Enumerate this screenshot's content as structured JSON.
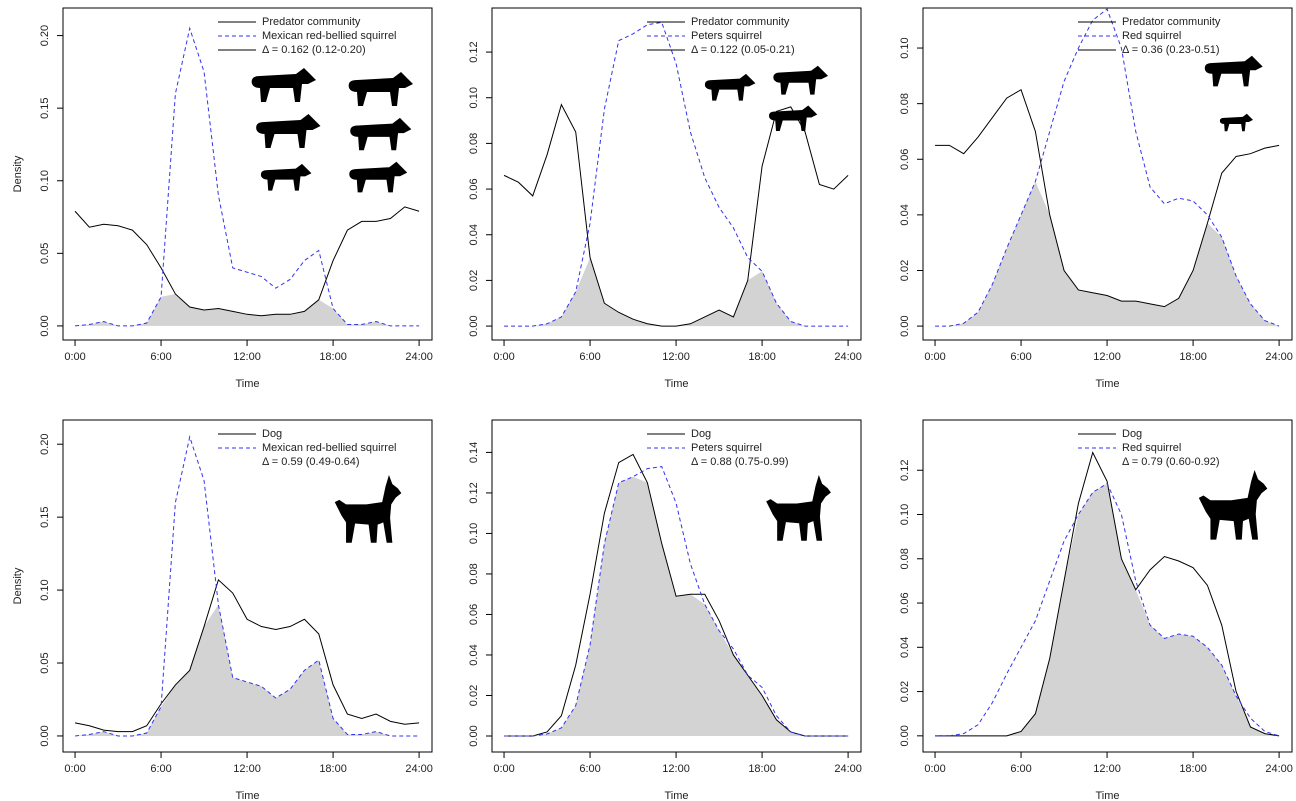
{
  "chart_data": [
    {
      "type": "line",
      "xlabel": "Time",
      "ylabel": "Density",
      "annotation": "Δ = 0.162 (0.12-0.20)",
      "overlap_color": "#d3d3d3",
      "x": [
        0,
        1,
        2,
        3,
        4,
        5,
        6,
        7,
        8,
        9,
        10,
        11,
        12,
        13,
        14,
        15,
        16,
        17,
        18,
        19,
        20,
        21,
        22,
        23,
        24
      ],
      "xlim": [
        -0.84,
        24.9
      ],
      "xticks": [
        {
          "value": 0,
          "label": "0:00"
        },
        {
          "value": 6,
          "label": "6:00"
        },
        {
          "value": 12,
          "label": "12:00"
        },
        {
          "value": 18,
          "label": "18:00"
        },
        {
          "value": 24,
          "label": "24:00"
        }
      ],
      "ylim": [
        -0.0097,
        0.219
      ],
      "yticks": [
        {
          "value": 0,
          "label": "0.00"
        },
        {
          "value": 0.05,
          "label": "0.05"
        },
        {
          "value": 0.1,
          "label": "0.10"
        },
        {
          "value": 0.15,
          "label": "0.15"
        },
        {
          "value": 0.2,
          "label": "0.20"
        }
      ],
      "series": [
        {
          "name": "Predator community",
          "color": "#000000",
          "linestyle": "solid",
          "values": [
            0.079,
            0.068,
            0.07,
            0.069,
            0.066,
            0.056,
            0.04,
            0.022,
            0.013,
            0.011,
            0.012,
            0.01,
            0.008,
            0.007,
            0.008,
            0.008,
            0.01,
            0.018,
            0.045,
            0.066,
            0.072,
            0.072,
            0.074,
            0.082,
            0.079
          ]
        },
        {
          "name": "Mexican red-bellied squirrel",
          "color": "#3333ee",
          "linestyle": "dashed",
          "values": [
            0,
            0.001,
            0.003,
            0,
            0,
            0.002,
            0.02,
            0.16,
            0.205,
            0.175,
            0.09,
            0.04,
            0.037,
            0.034,
            0.026,
            0.032,
            0.045,
            0.052,
            0.012,
            0.001,
            0.001,
            0.003,
            0,
            0,
            0
          ]
        }
      ]
    },
    {
      "type": "line",
      "xlabel": "Time",
      "annotation": "Δ = 0.122 (0.05-0.21)",
      "overlap_color": "#d3d3d3",
      "x": [
        0,
        1,
        2,
        3,
        4,
        5,
        6,
        7,
        8,
        9,
        10,
        11,
        12,
        13,
        14,
        15,
        16,
        17,
        18,
        19,
        20,
        21,
        22,
        23,
        24
      ],
      "xlim": [
        -0.84,
        24.9
      ],
      "xticks": [
        {
          "value": 0,
          "label": "0:00"
        },
        {
          "value": 6,
          "label": "6:00"
        },
        {
          "value": 12,
          "label": "12:00"
        },
        {
          "value": 18,
          "label": "18:00"
        },
        {
          "value": 24,
          "label": "24:00"
        }
      ],
      "ylim": [
        -0.0061,
        0.1393
      ],
      "yticks": [
        {
          "value": 0,
          "label": "0.00"
        },
        {
          "value": 0.02,
          "label": "0.02"
        },
        {
          "value": 0.04,
          "label": "0.04"
        },
        {
          "value": 0.06,
          "label": "0.06"
        },
        {
          "value": 0.08,
          "label": "0.08"
        },
        {
          "value": 0.1,
          "label": "0.10"
        },
        {
          "value": 0.12,
          "label": "0.12"
        }
      ],
      "series": [
        {
          "name": "Predator community",
          "color": "#000000",
          "linestyle": "solid",
          "values": [
            0.066,
            0.063,
            0.057,
            0.075,
            0.097,
            0.085,
            0.03,
            0.01,
            0.006,
            0.003,
            0.001,
            0,
            0,
            0.001,
            0.004,
            0.007,
            0.004,
            0.02,
            0.07,
            0.094,
            0.096,
            0.085,
            0.062,
            0.06,
            0.066
          ]
        },
        {
          "name": "Peters squirrel",
          "color": "#3333ee",
          "linestyle": "dashed",
          "values": [
            0,
            0,
            0,
            0.001,
            0.004,
            0.015,
            0.045,
            0.095,
            0.125,
            0.128,
            0.132,
            0.133,
            0.115,
            0.085,
            0.065,
            0.052,
            0.043,
            0.03,
            0.024,
            0.01,
            0.002,
            0,
            0,
            0,
            0
          ]
        }
      ]
    },
    {
      "type": "line",
      "xlabel": "Time",
      "annotation": "Δ = 0.36 (0.23-0.51)",
      "overlap_color": "#d3d3d3",
      "x": [
        0,
        1,
        2,
        3,
        4,
        5,
        6,
        7,
        8,
        9,
        10,
        11,
        12,
        13,
        14,
        15,
        16,
        17,
        18,
        19,
        20,
        21,
        22,
        23,
        24
      ],
      "xlim": [
        -0.84,
        24.9
      ],
      "xticks": [
        {
          "value": 0,
          "label": "0:00"
        },
        {
          "value": 6,
          "label": "6:00"
        },
        {
          "value": 12,
          "label": "12:00"
        },
        {
          "value": 18,
          "label": "18:00"
        },
        {
          "value": 24,
          "label": "24:00"
        }
      ],
      "ylim": [
        -0.005,
        0.1144
      ],
      "yticks": [
        {
          "value": 0,
          "label": "0.00"
        },
        {
          "value": 0.02,
          "label": "0.02"
        },
        {
          "value": 0.04,
          "label": "0.04"
        },
        {
          "value": 0.06,
          "label": "0.06"
        },
        {
          "value": 0.08,
          "label": "0.08"
        },
        {
          "value": 0.1,
          "label": "0.10"
        }
      ],
      "series": [
        {
          "name": "Predator community",
          "color": "#000000",
          "linestyle": "solid",
          "values": [
            0.065,
            0.065,
            0.062,
            0.068,
            0.075,
            0.082,
            0.085,
            0.07,
            0.04,
            0.02,
            0.013,
            0.012,
            0.011,
            0.009,
            0.009,
            0.008,
            0.007,
            0.01,
            0.02,
            0.037,
            0.055,
            0.061,
            0.062,
            0.064,
            0.065
          ]
        },
        {
          "name": "Red squirrel",
          "color": "#3333ee",
          "linestyle": "dashed",
          "values": [
            0,
            0,
            0.001,
            0.005,
            0.015,
            0.028,
            0.04,
            0.052,
            0.07,
            0.088,
            0.1,
            0.11,
            0.114,
            0.1,
            0.07,
            0.05,
            0.044,
            0.046,
            0.045,
            0.04,
            0.032,
            0.018,
            0.008,
            0.002,
            0
          ]
        }
      ]
    },
    {
      "type": "line",
      "xlabel": "Time",
      "ylabel": "Density",
      "annotation": "Δ = 0.59 (0.49-0.64)",
      "overlap_color": "#d3d3d3",
      "x": [
        0,
        1,
        2,
        3,
        4,
        5,
        6,
        7,
        8,
        9,
        10,
        11,
        12,
        13,
        14,
        15,
        16,
        17,
        18,
        19,
        20,
        21,
        22,
        23,
        24
      ],
      "xlim": [
        -0.84,
        24.9
      ],
      "xticks": [
        {
          "value": 0,
          "label": "0:00"
        },
        {
          "value": 6,
          "label": "6:00"
        },
        {
          "value": 12,
          "label": "12:00"
        },
        {
          "value": 18,
          "label": "18:00"
        },
        {
          "value": 24,
          "label": "24:00"
        }
      ],
      "ylim": [
        -0.011,
        0.2166
      ],
      "yticks": [
        {
          "value": 0,
          "label": "0.00"
        },
        {
          "value": 0.05,
          "label": "0.05"
        },
        {
          "value": 0.1,
          "label": "0.10"
        },
        {
          "value": 0.15,
          "label": "0.15"
        },
        {
          "value": 0.2,
          "label": "0.20"
        }
      ],
      "series": [
        {
          "name": "Dog",
          "color": "#000000",
          "linestyle": "solid",
          "values": [
            0.009,
            0.007,
            0.004,
            0.003,
            0.003,
            0.007,
            0.022,
            0.035,
            0.045,
            0.075,
            0.107,
            0.098,
            0.08,
            0.075,
            0.073,
            0.075,
            0.08,
            0.07,
            0.035,
            0.015,
            0.012,
            0.015,
            0.01,
            0.008,
            0.009
          ]
        },
        {
          "name": "Mexican red-bellied squirrel",
          "color": "#3333ee",
          "linestyle": "dashed",
          "values": [
            0,
            0.001,
            0.003,
            0,
            0,
            0.002,
            0.02,
            0.16,
            0.205,
            0.175,
            0.09,
            0.04,
            0.037,
            0.034,
            0.026,
            0.032,
            0.045,
            0.052,
            0.012,
            0.001,
            0.001,
            0.003,
            0,
            0,
            0
          ]
        }
      ]
    },
    {
      "type": "line",
      "xlabel": "Time",
      "annotation": "Δ = 0.88 (0.75-0.99)",
      "overlap_color": "#d3d3d3",
      "x": [
        0,
        1,
        2,
        3,
        4,
        5,
        6,
        7,
        8,
        9,
        10,
        11,
        12,
        13,
        14,
        15,
        16,
        17,
        18,
        19,
        20,
        21,
        22,
        23,
        24
      ],
      "xlim": [
        -0.84,
        24.9
      ],
      "xticks": [
        {
          "value": 0,
          "label": "0:00"
        },
        {
          "value": 6,
          "label": "6:00"
        },
        {
          "value": 12,
          "label": "12:00"
        },
        {
          "value": 18,
          "label": "18:00"
        },
        {
          "value": 24,
          "label": "24:00"
        }
      ],
      "ylim": [
        -0.0079,
        0.156
      ],
      "yticks": [
        {
          "value": 0,
          "label": "0.00"
        },
        {
          "value": 0.02,
          "label": "0.02"
        },
        {
          "value": 0.04,
          "label": "0.04"
        },
        {
          "value": 0.06,
          "label": "0.06"
        },
        {
          "value": 0.08,
          "label": "0.08"
        },
        {
          "value": 0.1,
          "label": "0.10"
        },
        {
          "value": 0.12,
          "label": "0.12"
        },
        {
          "value": 0.14,
          "label": "0.14"
        }
      ],
      "series": [
        {
          "name": "Dog",
          "color": "#000000",
          "linestyle": "solid",
          "values": [
            0,
            0,
            0,
            0.002,
            0.01,
            0.035,
            0.07,
            0.11,
            0.135,
            0.139,
            0.125,
            0.095,
            0.069,
            0.07,
            0.07,
            0.057,
            0.04,
            0.03,
            0.02,
            0.008,
            0.002,
            0,
            0,
            0,
            0
          ]
        },
        {
          "name": "Peters squirrel",
          "color": "#3333ee",
          "linestyle": "dashed",
          "values": [
            0,
            0,
            0,
            0.001,
            0.004,
            0.015,
            0.045,
            0.095,
            0.125,
            0.128,
            0.132,
            0.133,
            0.115,
            0.085,
            0.065,
            0.052,
            0.043,
            0.03,
            0.024,
            0.01,
            0.002,
            0,
            0,
            0,
            0
          ]
        }
      ]
    },
    {
      "type": "line",
      "xlabel": "Time",
      "annotation": "Δ = 0.79 (0.60-0.92)",
      "overlap_color": "#d3d3d3",
      "x": [
        0,
        1,
        2,
        3,
        4,
        5,
        6,
        7,
        8,
        9,
        10,
        11,
        12,
        13,
        14,
        15,
        16,
        17,
        18,
        19,
        20,
        21,
        22,
        23,
        24
      ],
      "xlim": [
        -0.84,
        24.9
      ],
      "xticks": [
        {
          "value": 0,
          "label": "0:00"
        },
        {
          "value": 6,
          "label": "6:00"
        },
        {
          "value": 12,
          "label": "12:00"
        },
        {
          "value": 18,
          "label": "18:00"
        },
        {
          "value": 24,
          "label": "24:00"
        }
      ],
      "ylim": [
        -0.0073,
        0.1427
      ],
      "yticks": [
        {
          "value": 0,
          "label": "0.00"
        },
        {
          "value": 0.02,
          "label": "0.02"
        },
        {
          "value": 0.04,
          "label": "0.04"
        },
        {
          "value": 0.06,
          "label": "0.06"
        },
        {
          "value": 0.08,
          "label": "0.08"
        },
        {
          "value": 0.1,
          "label": "0.10"
        },
        {
          "value": 0.12,
          "label": "0.12"
        }
      ],
      "series": [
        {
          "name": "Dog",
          "color": "#000000",
          "linestyle": "solid",
          "values": [
            0,
            0,
            0,
            0,
            0,
            0,
            0.002,
            0.01,
            0.035,
            0.07,
            0.105,
            0.128,
            0.115,
            0.08,
            0.066,
            0.075,
            0.081,
            0.079,
            0.076,
            0.068,
            0.05,
            0.02,
            0.004,
            0.001,
            0
          ]
        },
        {
          "name": "Red squirrel",
          "color": "#3333ee",
          "linestyle": "dashed",
          "values": [
            0,
            0,
            0.001,
            0.005,
            0.015,
            0.028,
            0.04,
            0.052,
            0.07,
            0.088,
            0.1,
            0.11,
            0.114,
            0.1,
            0.07,
            0.05,
            0.044,
            0.046,
            0.045,
            0.04,
            0.032,
            0.018,
            0.008,
            0.002,
            0
          ]
        }
      ]
    }
  ]
}
